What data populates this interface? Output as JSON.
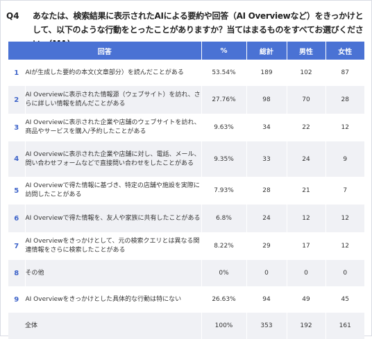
{
  "question": {
    "label": "Q4",
    "text": "あなたは、検索結果に表示されたAIによる要約や回答（AI Overviewなど）をきっかけとして、以下のような行動をとったことがありますか？当てはまるものをすべてお選びください。(MA)"
  },
  "table": {
    "headers": [
      "回答",
      "%",
      "総計",
      "男性",
      "女性"
    ],
    "rows": [
      {
        "no": "1",
        "answer": "AIが生成した要約の本文(文章部分）を読んだことがある",
        "pct": "53.54%",
        "total": "189",
        "male": "102",
        "female": "87"
      },
      {
        "no": "2",
        "answer": "AI Overviewに表示された情報源（ウェブサイト）を訪れ、さらに詳しい情報を読んだことがある",
        "pct": "27.76%",
        "total": "98",
        "male": "70",
        "female": "28"
      },
      {
        "no": "3",
        "answer": "AI Overviewに表示された企業や店舗のウェブサイトを訪れ、商品やサービスを購入/予約したことがある",
        "pct": "9.63%",
        "total": "34",
        "male": "22",
        "female": "12"
      },
      {
        "no": "4",
        "answer": "AI Overviewに表示された企業や店舗に対し、電話、メール、問い合わせフォームなどで直接問い合わせをしたことがある",
        "pct": "9.35%",
        "total": "33",
        "male": "24",
        "female": "9"
      },
      {
        "no": "5",
        "answer": "AI Overviewで得た情報に基づき、特定の店舗や施設を実際に 訪問したことがある",
        "pct": "7.93%",
        "total": "28",
        "male": "21",
        "female": "7"
      },
      {
        "no": "6",
        "answer": "AI Overviewで得た情報を、友人や家族に共有したことがある",
        "pct": "6.8%",
        "total": "24",
        "male": "12",
        "female": "12"
      },
      {
        "no": "7",
        "answer": "AI Overviewをきっかけとして、元の検索クエリとは異なる関連情報をさらに検索したことがある",
        "pct": "8.22%",
        "total": "29",
        "male": "17",
        "female": "12"
      },
      {
        "no": "8",
        "answer": "その他",
        "pct": "0%",
        "total": "0",
        "male": "0",
        "female": "0"
      },
      {
        "no": "9",
        "answer": "AI Overviewをきっかけとした具体的な行動は特にない",
        "pct": "26.63%",
        "total": "94",
        "male": "49",
        "female": "45"
      }
    ],
    "total_row": {
      "answer": "全体",
      "pct": "100%",
      "total": "353",
      "male": "192",
      "female": "161"
    }
  }
}
